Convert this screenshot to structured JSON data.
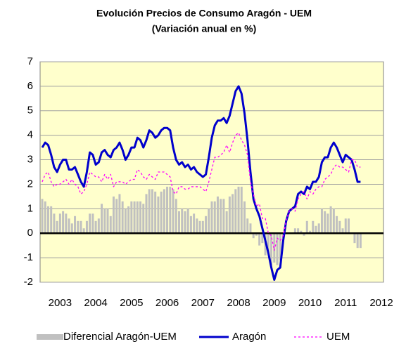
{
  "chart_data": {
    "type": "combo",
    "title": "Evolución Precios de Consumo Aragón - UEM",
    "subtitle": "(Variación anual en %)",
    "categories": [
      null,
      null,
      null,
      null,
      null,
      null,
      "2003",
      null,
      null,
      null,
      null,
      null,
      null,
      null,
      null,
      null,
      null,
      null,
      "2004",
      null,
      null,
      null,
      null,
      null,
      null,
      null,
      null,
      null,
      null,
      null,
      "2005",
      null,
      null,
      null,
      null,
      null,
      null,
      null,
      null,
      null,
      null,
      null,
      "2006",
      null,
      null,
      null,
      null,
      null,
      null,
      null,
      null,
      null,
      null,
      null,
      "2007",
      null,
      null,
      null,
      null,
      null,
      null,
      null,
      null,
      null,
      null,
      null,
      "2008",
      null,
      null,
      null,
      null,
      null,
      null,
      null,
      null,
      null,
      null,
      null,
      "2009",
      null,
      null,
      null,
      null,
      null,
      null,
      null,
      null,
      null,
      null,
      null,
      "2010",
      null,
      null,
      null,
      null,
      null,
      null,
      null,
      null,
      null,
      null,
      null,
      "2011",
      null,
      null,
      null,
      null,
      null,
      null,
      null,
      null,
      null,
      null,
      null,
      "2012"
    ],
    "series": [
      {
        "name": "Diferencial Aragón-UEM",
        "type": "bar",
        "color": "#c0c0c0",
        "values": [
          1.4,
          1.3,
          1.1,
          1.1,
          0.8,
          0.5,
          0.8,
          0.9,
          0.8,
          0.6,
          0.4,
          0.7,
          0.5,
          0.5,
          0.2,
          0.5,
          0.8,
          0.8,
          0.5,
          0.6,
          1.2,
          1.0,
          1.0,
          0.7,
          1.5,
          1.4,
          1.6,
          1.3,
          1.0,
          1.1,
          1.3,
          1.3,
          1.3,
          1.3,
          1.2,
          1.6,
          1.8,
          1.8,
          1.7,
          1.5,
          1.7,
          1.8,
          1.9,
          1.9,
          1.8,
          1.4,
          0.9,
          1.0,
          0.9,
          1.0,
          0.7,
          0.8,
          0.6,
          0.5,
          0.5,
          0.7,
          1.0,
          1.3,
          1.3,
          1.5,
          1.4,
          1.4,
          0.9,
          1.5,
          1.6,
          1.8,
          1.9,
          1.9,
          1.3,
          0.6,
          0.4,
          -0.2,
          -0.1,
          -0.5,
          -0.4,
          -0.9,
          -0.8,
          -1.3,
          -1.2,
          -1.3,
          -1.1,
          -0.2,
          0.0,
          0.0,
          0.0,
          0.2,
          0.2,
          0.1,
          -0.1,
          0.5,
          0.1,
          0.5,
          0.3,
          0.4,
          1.0,
          0.9,
          0.8,
          1.1,
          1.0,
          0.7,
          0.5,
          0.2,
          0.6,
          0.6,
          0.0,
          -0.4,
          -0.6,
          -0.6,
          null,
          null,
          null,
          null,
          null,
          null,
          null
        ]
      },
      {
        "name": "Aragón",
        "type": "line",
        "color": "#0000cc",
        "values": [
          3.5,
          3.7,
          3.6,
          3.2,
          2.7,
          2.5,
          2.8,
          3.0,
          3.0,
          2.6,
          2.6,
          2.7,
          2.4,
          2.1,
          1.9,
          2.5,
          3.3,
          3.2,
          2.8,
          2.9,
          3.3,
          3.4,
          3.2,
          3.1,
          3.4,
          3.5,
          3.7,
          3.4,
          3.0,
          3.2,
          3.5,
          3.5,
          3.9,
          3.8,
          3.5,
          3.8,
          4.2,
          4.1,
          3.9,
          4.0,
          4.2,
          4.3,
          4.3,
          4.2,
          3.5,
          3.0,
          2.8,
          2.9,
          2.7,
          2.8,
          2.6,
          2.7,
          2.5,
          2.4,
          2.3,
          2.4,
          3.1,
          3.9,
          4.4,
          4.6,
          4.6,
          4.7,
          4.5,
          4.8,
          5.3,
          5.8,
          6.0,
          5.7,
          4.9,
          3.8,
          2.5,
          1.4,
          1.0,
          0.7,
          0.2,
          -0.3,
          -0.8,
          -1.4,
          -1.9,
          -1.5,
          -1.4,
          -0.3,
          0.5,
          0.9,
          1.0,
          1.1,
          1.6,
          1.7,
          1.6,
          1.9,
          1.8,
          2.1,
          2.1,
          2.3,
          2.9,
          3.1,
          3.1,
          3.5,
          3.7,
          3.5,
          3.2,
          2.9,
          3.2,
          3.1,
          3.0,
          2.6,
          2.1,
          2.1,
          null,
          null,
          null,
          null,
          null,
          null,
          null
        ]
      },
      {
        "name": "UEM",
        "type": "line",
        "dashed": true,
        "color": "#ff00ff",
        "values": [
          2.1,
          2.4,
          2.5,
          2.1,
          1.9,
          2.0,
          2.0,
          2.1,
          2.2,
          2.0,
          2.2,
          2.0,
          1.9,
          1.6,
          1.7,
          2.0,
          2.5,
          2.4,
          2.3,
          2.3,
          2.1,
          2.4,
          2.2,
          2.4,
          1.9,
          2.1,
          2.1,
          2.1,
          2.0,
          2.1,
          2.2,
          2.2,
          2.6,
          2.5,
          2.3,
          2.2,
          2.4,
          2.3,
          2.2,
          2.5,
          2.5,
          2.5,
          2.4,
          2.3,
          1.7,
          1.6,
          1.9,
          1.9,
          1.8,
          1.8,
          1.9,
          1.9,
          1.9,
          1.9,
          1.8,
          1.7,
          2.1,
          2.6,
          3.1,
          3.1,
          3.2,
          3.3,
          3.6,
          3.3,
          3.7,
          4.0,
          4.1,
          3.8,
          3.6,
          3.2,
          2.1,
          1.6,
          1.1,
          1.2,
          0.6,
          0.6,
          0.0,
          -0.1,
          -0.7,
          -0.2,
          -0.3,
          -0.1,
          0.5,
          0.9,
          1.0,
          0.9,
          1.4,
          1.6,
          1.7,
          1.4,
          1.7,
          1.6,
          1.8,
          1.9,
          1.9,
          2.2,
          2.3,
          2.4,
          2.7,
          2.8,
          2.7,
          2.7,
          2.6,
          2.5,
          3.0,
          3.0,
          2.7,
          2.7,
          null,
          null,
          null,
          null,
          null,
          null,
          null
        ]
      }
    ],
    "ylim": [
      -2,
      7
    ],
    "yticks": [
      -2,
      -1,
      0,
      1,
      2,
      3,
      4,
      5,
      6,
      7
    ],
    "grid": true,
    "legend": "bottom"
  }
}
